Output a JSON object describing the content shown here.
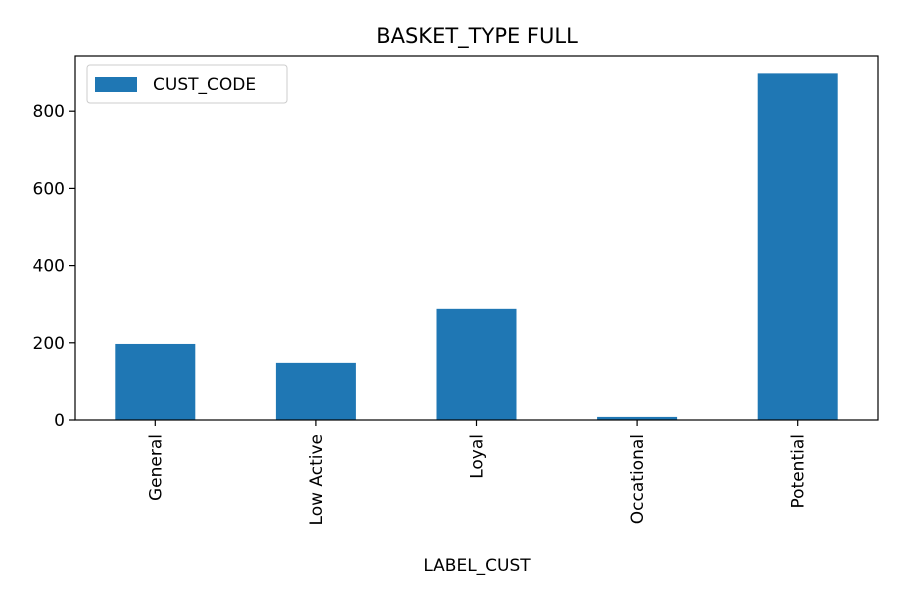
{
  "chart_data": {
    "type": "bar",
    "title": "BASKET_TYPE FULL",
    "xlabel": "LABEL_CUST",
    "ylabel": "",
    "categories": [
      "General",
      "Low Active",
      "Loyal",
      "Occational",
      "Potential"
    ],
    "series": [
      {
        "name": "CUST_CODE",
        "values": [
          197,
          148,
          288,
          8,
          898
        ],
        "color": "#1f77b4"
      }
    ],
    "ylim": [
      0,
      943
    ],
    "yticks": [
      0,
      200,
      400,
      600,
      800
    ],
    "grid": false,
    "legend": "top-left"
  }
}
